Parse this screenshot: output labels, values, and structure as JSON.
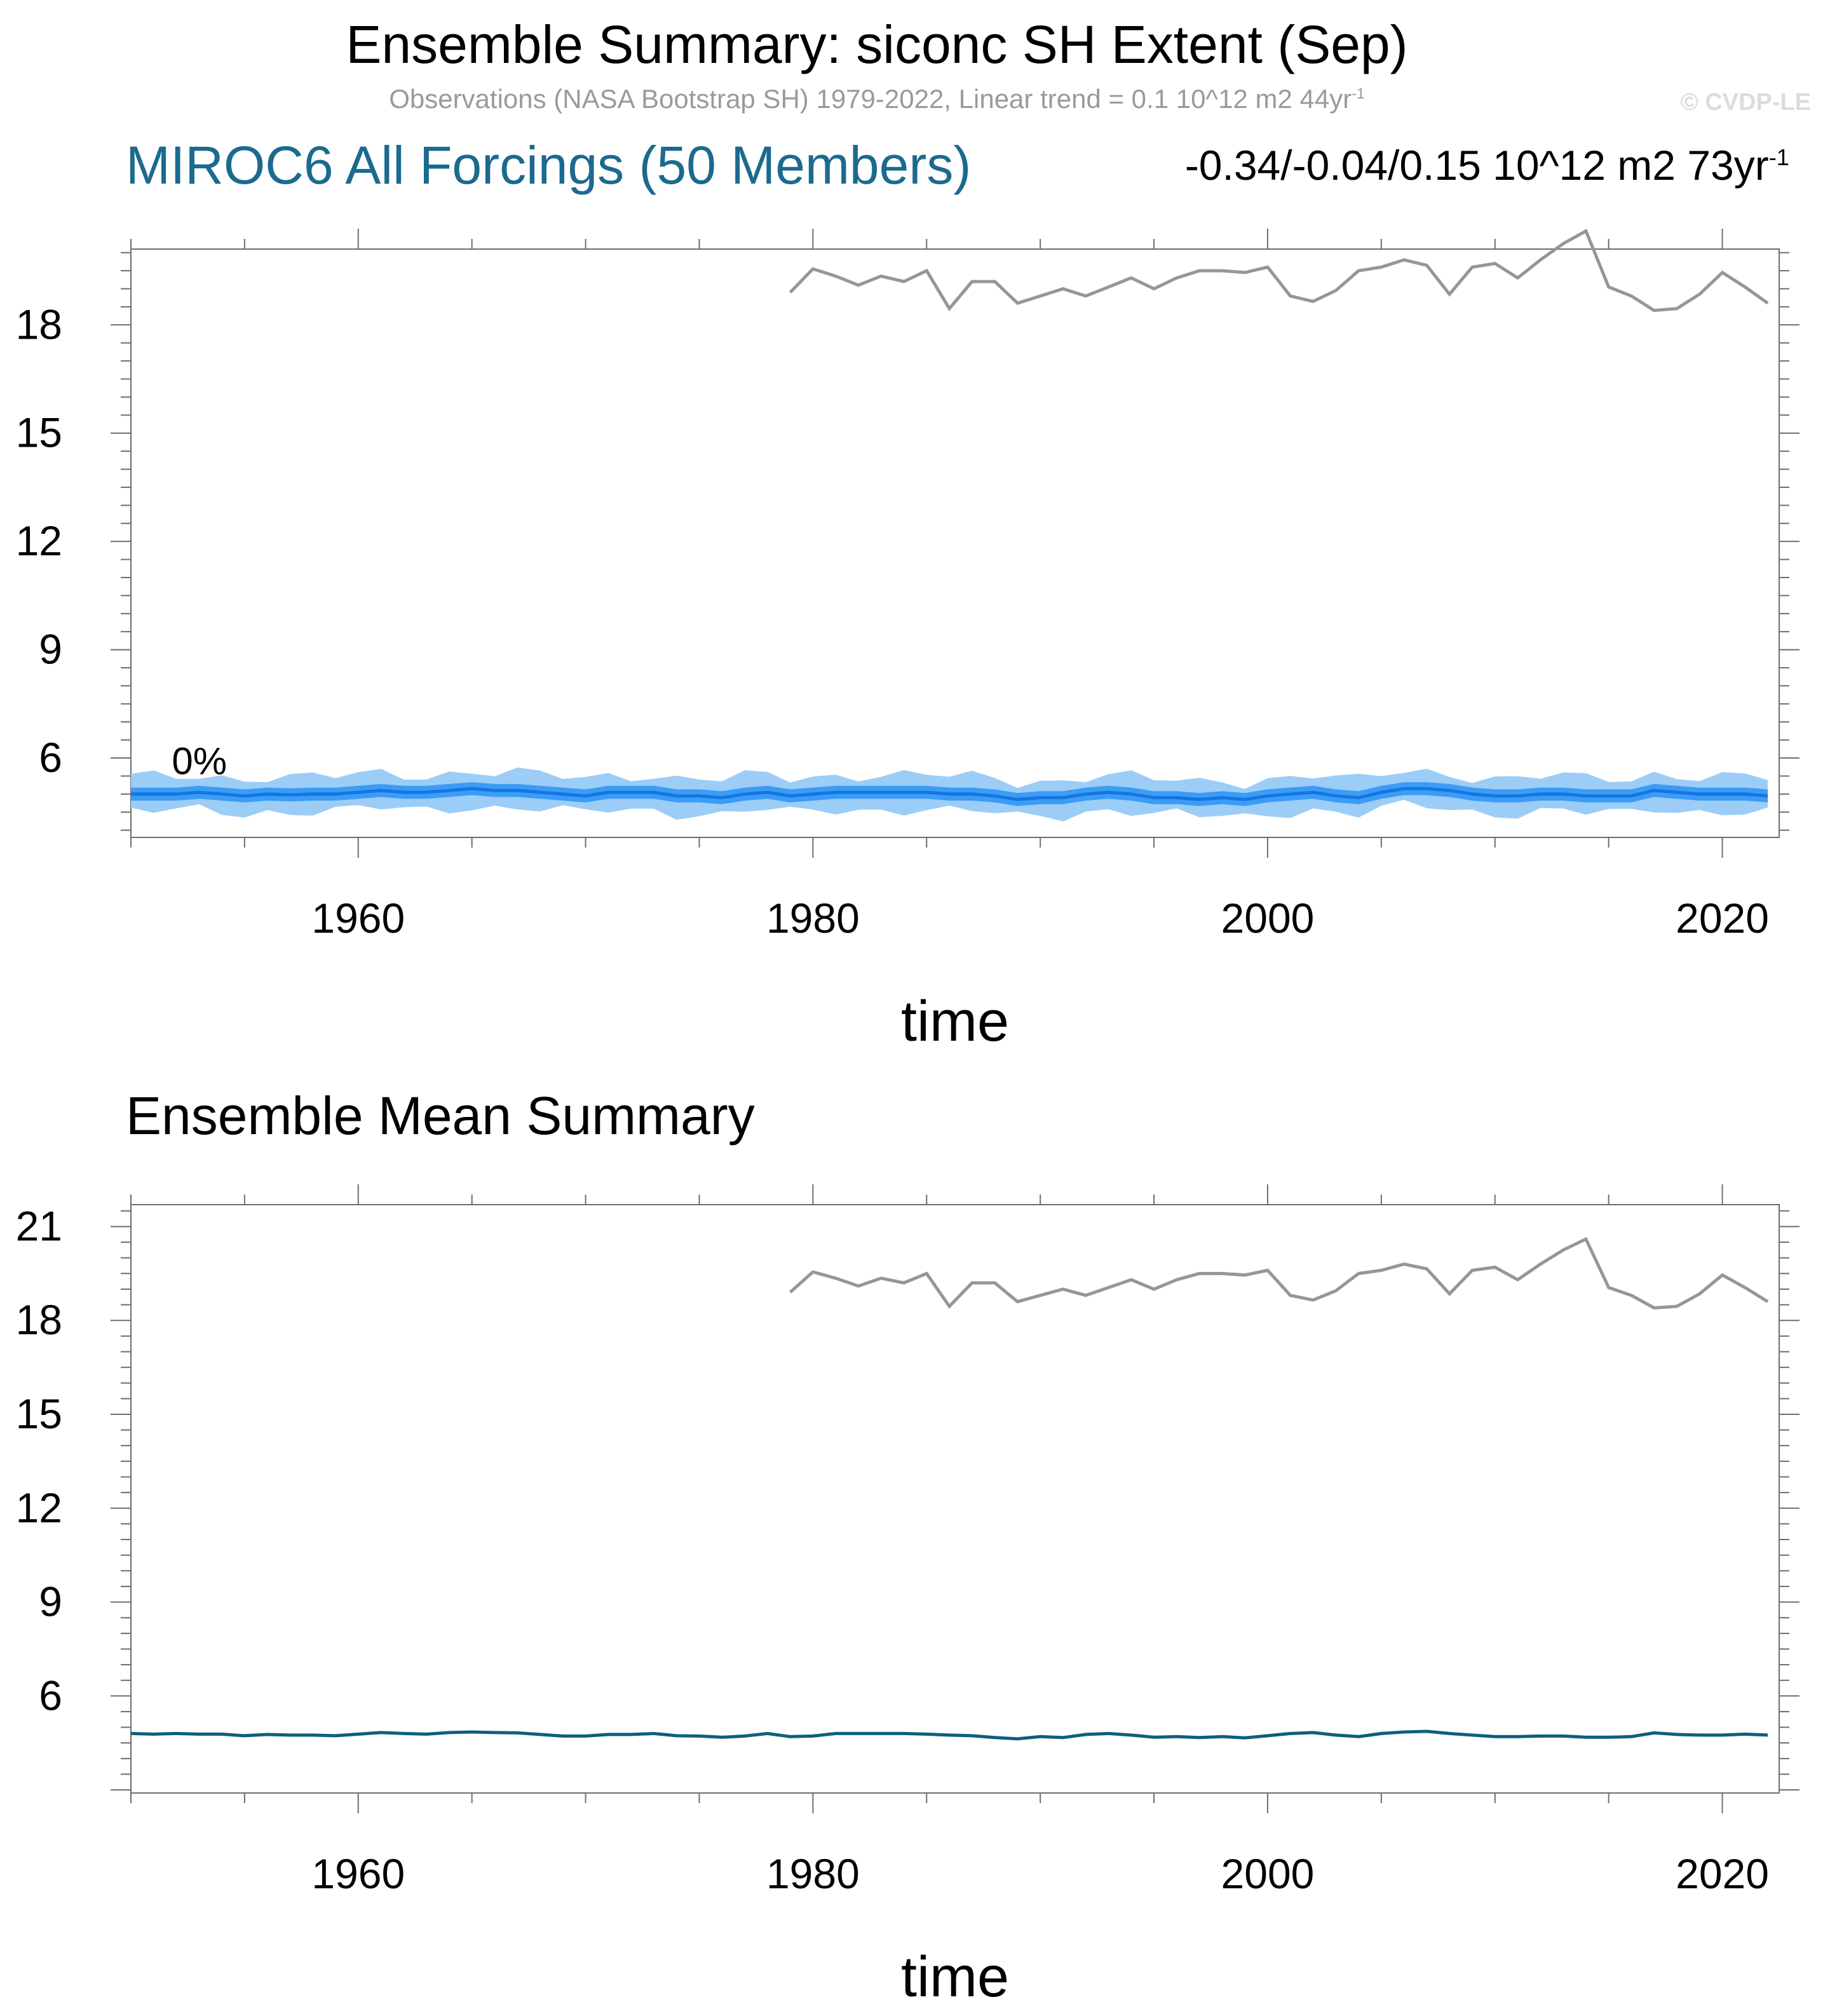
{
  "header": {
    "title": "Ensemble Summary: siconc SH Extent (Sep)",
    "obs_text": "Observations (NASA Bootstrap SH) 1979-2022, Linear trend = 0.1 10^12 m2 44yr",
    "obs_sup": "-1",
    "copyright": "© CVDP-LE"
  },
  "panel1": {
    "title": "MIROC6 All Forcings (50 Members)",
    "stats_text": "-0.34/-0.04/0.15 10^12 m2 73yr",
    "stats_sup": "-1",
    "percent_label": "0%",
    "xlabel": "time"
  },
  "panel2": {
    "title": "Ensemble Mean Summary",
    "xlabel": "time"
  },
  "colors": {
    "obs": "#969696",
    "ens_mean": "#0d5f7e",
    "band_outer": "#9ccdf7",
    "band_inner": "#3a9cf5",
    "band_line": "#1575e0"
  },
  "chart_data": [
    {
      "type": "area",
      "xlim": [
        1950,
        2022.5
      ],
      "ylim": [
        3.8,
        20.1
      ],
      "xticks": [
        1960,
        1980,
        2000,
        2020
      ],
      "yticks": [
        6,
        9,
        12,
        15,
        18
      ],
      "xlabel": "time",
      "series": [
        {
          "name": "Observations",
          "x_start": 1979,
          "values": [
            18.9,
            19.55,
            19.35,
            19.1,
            19.35,
            19.2,
            19.5,
            18.45,
            19.2,
            19.2,
            18.6,
            18.8,
            19.0,
            18.8,
            19.05,
            19.3,
            19.0,
            19.3,
            19.5,
            19.5,
            19.45,
            19.6,
            18.8,
            18.65,
            18.95,
            19.5,
            19.6,
            19.8,
            19.65,
            18.85,
            19.6,
            19.7,
            19.3,
            19.8,
            20.25,
            20.6,
            19.05,
            18.8,
            18.4,
            18.45,
            18.85,
            19.45,
            19.05,
            18.6
          ]
        },
        {
          "name": "Ensemble",
          "x_start": 1950,
          "mean": [
            5.0,
            5.0,
            5.0,
            5.05,
            5.0,
            4.95,
            5.0,
            4.98,
            5.0,
            5.0,
            5.05,
            5.1,
            5.05,
            5.05,
            5.1,
            5.15,
            5.1,
            5.1,
            5.05,
            5.0,
            4.95,
            5.05,
            5.05,
            5.05,
            4.95,
            4.95,
            4.9,
            5.0,
            5.05,
            4.95,
            5.0,
            5.05,
            5.05,
            5.05,
            5.05,
            5.05,
            5.0,
            5.0,
            4.95,
            4.85,
            4.9,
            4.9,
            5.0,
            5.05,
            5.0,
            4.9,
            4.9,
            4.85,
            4.9,
            4.85,
            4.95,
            5.0,
            5.05,
            4.95,
            4.9,
            5.05,
            5.15,
            5.15,
            5.1,
            5.0,
            4.95,
            4.95,
            5.0,
            5.0,
            4.95,
            4.95,
            4.95,
            5.1,
            5.05,
            5.0,
            5.0,
            5.0,
            4.95
          ],
          "p10_p90_halfwidth": 0.18,
          "min_max_halfwidth": 0.48
        }
      ]
    },
    {
      "type": "line",
      "xlim": [
        1950,
        2022.5
      ],
      "ylim": [
        2.9,
        21.7
      ],
      "xticks": [
        1960,
        1980,
        2000,
        2020
      ],
      "yticks": [
        6,
        9,
        12,
        15,
        18,
        21
      ],
      "xlabel": "time",
      "series": [
        {
          "name": "Observations",
          "x_start": 1979,
          "values": [
            18.9,
            19.55,
            19.35,
            19.1,
            19.35,
            19.2,
            19.5,
            18.45,
            19.2,
            19.2,
            18.6,
            18.8,
            19.0,
            18.8,
            19.05,
            19.3,
            19.0,
            19.3,
            19.5,
            19.5,
            19.45,
            19.6,
            18.8,
            18.65,
            18.95,
            19.5,
            19.6,
            19.8,
            19.65,
            18.85,
            19.6,
            19.7,
            19.3,
            19.8,
            20.25,
            20.6,
            19.05,
            18.8,
            18.4,
            18.45,
            18.85,
            19.45,
            19.05,
            18.6
          ]
        },
        {
          "name": "Ensemble Mean",
          "x_start": 1950,
          "values": [
            4.8,
            4.78,
            4.8,
            4.78,
            4.78,
            4.73,
            4.77,
            4.75,
            4.75,
            4.73,
            4.78,
            4.83,
            4.8,
            4.78,
            4.83,
            4.85,
            4.83,
            4.82,
            4.77,
            4.72,
            4.72,
            4.77,
            4.77,
            4.8,
            4.73,
            4.72,
            4.68,
            4.72,
            4.8,
            4.7,
            4.72,
            4.8,
            4.8,
            4.8,
            4.8,
            4.78,
            4.75,
            4.73,
            4.67,
            4.63,
            4.7,
            4.67,
            4.77,
            4.8,
            4.75,
            4.68,
            4.7,
            4.67,
            4.7,
            4.66,
            4.73,
            4.8,
            4.83,
            4.75,
            4.7,
            4.8,
            4.85,
            4.87,
            4.8,
            4.75,
            4.7,
            4.7,
            4.72,
            4.72,
            4.68,
            4.68,
            4.7,
            4.82,
            4.77,
            4.75,
            4.75,
            4.78,
            4.75
          ]
        }
      ]
    }
  ]
}
